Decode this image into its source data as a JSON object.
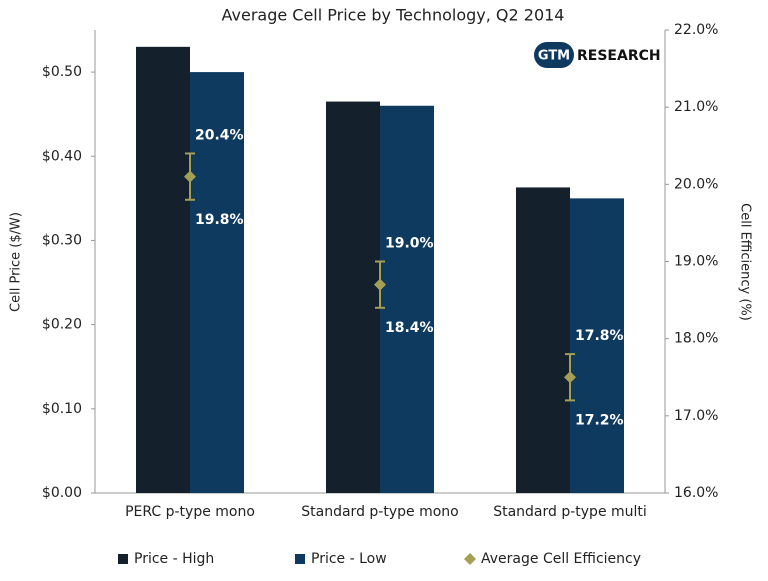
{
  "chart_data": {
    "type": "bar",
    "title": "Average Cell Price by Technology, Q2 2014",
    "y_label": "Cell Price ($/W)",
    "y2_label": "Cell Efficiency (%)",
    "categories": [
      "PERC p-type mono",
      "Standard p-type mono",
      "Standard p-type multi"
    ],
    "series": [
      {
        "name": "Price - High",
        "color": "#15202d",
        "values": [
          0.53,
          0.465,
          0.363
        ]
      },
      {
        "name": "Price - Low",
        "color": "#0f3a60",
        "values": [
          0.5,
          0.46,
          0.35
        ]
      },
      {
        "name": "Average Cell Efficiency",
        "color": "#a39f55",
        "axis": "y2",
        "values": [
          20.1,
          18.7,
          17.5
        ],
        "upper": [
          20.4,
          19.0,
          17.8
        ],
        "upper_labels": [
          "20.4%",
          "19.0%",
          "17.8%"
        ],
        "lower": [
          19.8,
          18.4,
          17.2
        ],
        "lower_labels": [
          "19.8%",
          "18.4%",
          "17.2%"
        ]
      }
    ],
    "ylim": [
      0,
      0.55
    ],
    "yticks": [
      {
        "value": 0,
        "label": "$0.00"
      },
      {
        "value": 0.1,
        "label": "$0.10"
      },
      {
        "value": 0.2,
        "label": "$0.20"
      },
      {
        "value": 0.3,
        "label": "$0.30"
      },
      {
        "value": 0.4,
        "label": "$0.40"
      },
      {
        "value": 0.5,
        "label": "$0.50"
      }
    ],
    "y2lim": [
      16,
      22
    ],
    "y2ticks": [
      {
        "value": 16,
        "label": "16.0%"
      },
      {
        "value": 17,
        "label": "17.0%"
      },
      {
        "value": 18,
        "label": "18.0%"
      },
      {
        "value": 19,
        "label": "19.0%"
      },
      {
        "value": 20,
        "label": "20.0%"
      },
      {
        "value": 21,
        "label": "21.0%"
      },
      {
        "value": 22,
        "label": "22.0%"
      }
    ],
    "grid": false,
    "legend": "bottom"
  },
  "logo": {
    "badge": "GTM",
    "text": "RESEARCH"
  }
}
